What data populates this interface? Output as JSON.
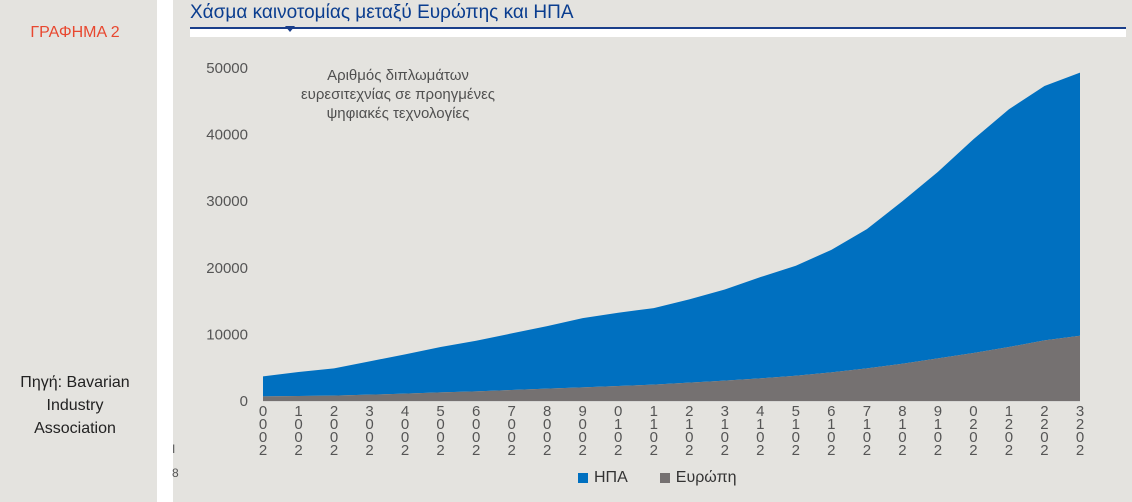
{
  "sidebar": {
    "chart_label": "ΓΡΑΦΗΜΑ 2",
    "source_lines": [
      "Πηγή: Bavarian",
      "Industry",
      "Association"
    ],
    "stray_marks": [
      "I",
      "8"
    ]
  },
  "colors": {
    "usa": "#0070c0",
    "europe": "#757171",
    "title": "#0a3d8f",
    "chart_label": "#e8472f"
  },
  "chart_data": {
    "type": "area",
    "title": "Χάσμα καινοτομίας μεταξύ Ευρώπης και ΗΠΑ",
    "annotation": [
      "Αριθμός διπλωμάτων",
      "ευρεσιτεχνίας σε προηγμένες",
      "ψηφιακές τεχνολογίες"
    ],
    "x": [
      "2000",
      "2001",
      "2002",
      "2003",
      "2004",
      "2005",
      "2006",
      "2007",
      "2008",
      "2009",
      "2010",
      "2011",
      "2012",
      "2013",
      "2014",
      "2015",
      "2016",
      "2017",
      "2018",
      "2019",
      "2020",
      "2021",
      "2022",
      "2023"
    ],
    "ylim": [
      0,
      50000
    ],
    "yticks": [
      0,
      10000,
      20000,
      30000,
      40000,
      50000
    ],
    "stacked": true,
    "legend_position": "bottom",
    "series": [
      {
        "name": "ΗΠΑ",
        "color": "#0070c0",
        "values": [
          3000,
          3600,
          4100,
          5000,
          5900,
          6800,
          7600,
          8500,
          9400,
          10400,
          11000,
          11500,
          12500,
          13700,
          15200,
          16500,
          18400,
          20900,
          24400,
          28000,
          32100,
          35700,
          38200,
          39500
        ]
      },
      {
        "name": "Ευρώπη",
        "color": "#757171",
        "values": [
          700,
          750,
          800,
          950,
          1100,
          1300,
          1450,
          1650,
          1850,
          2050,
          2250,
          2450,
          2750,
          3050,
          3400,
          3800,
          4300,
          4900,
          5600,
          6400,
          7200,
          8100,
          9100,
          9800
        ]
      }
    ]
  }
}
